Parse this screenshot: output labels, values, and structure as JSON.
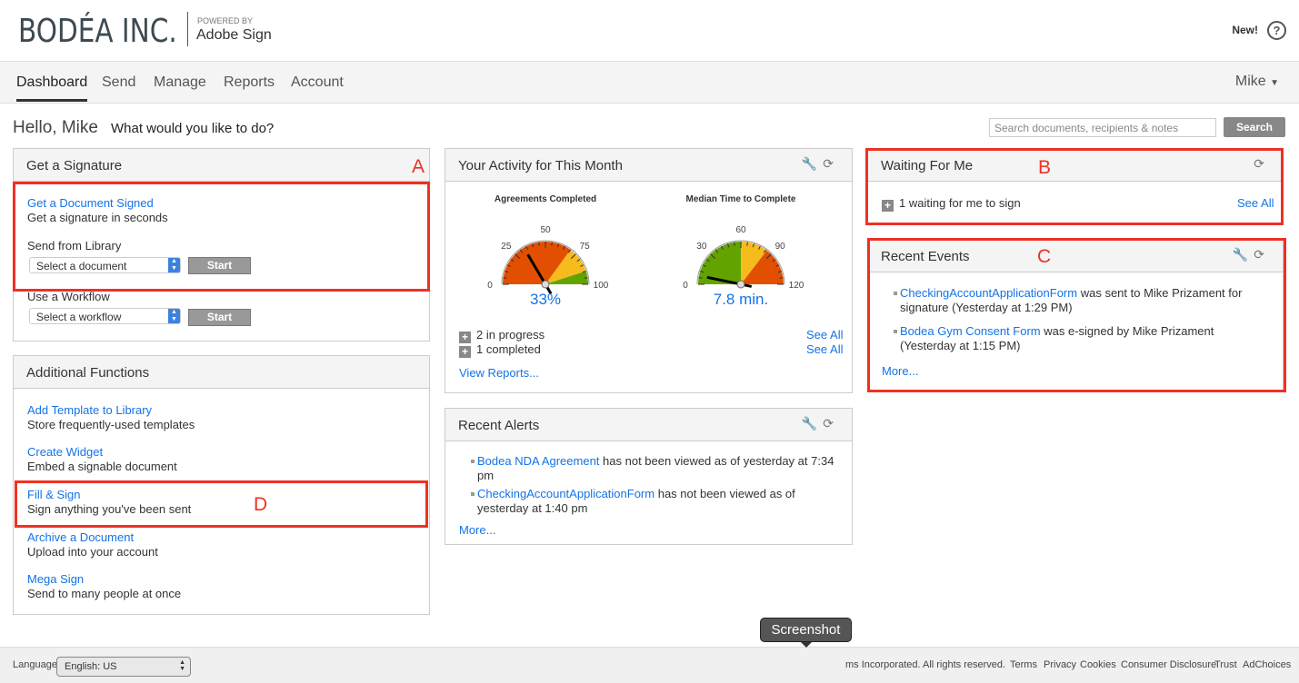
{
  "brand": {
    "logo": "BODÉA INC.",
    "powered_by": "POWERED BY",
    "product": "Adobe Sign"
  },
  "header": {
    "new_label": "New!",
    "help_icon": "question-circle-icon"
  },
  "nav": {
    "tabs": [
      "Dashboard",
      "Send",
      "Manage",
      "Reports",
      "Account"
    ],
    "active": "Dashboard",
    "user": "Mike"
  },
  "greeting": {
    "hello": "Hello, Mike",
    "prompt": "What would you like to do?"
  },
  "search": {
    "placeholder": "Search documents, recipients & notes",
    "button": "Search"
  },
  "get_signature": {
    "title": "Get a Signature",
    "link": "Get a Document Signed",
    "desc": "Get a signature in seconds",
    "library_label": "Send from Library",
    "library_select": "Select a document",
    "start": "Start",
    "workflow_label": "Use a Workflow",
    "workflow_select": "Select a workflow"
  },
  "additional": {
    "title": "Additional Functions",
    "items": [
      {
        "link": "Add Template to Library",
        "desc": "Store frequently-used templates"
      },
      {
        "link": "Create Widget",
        "desc": "Embed a signable document"
      },
      {
        "link": "Fill & Sign",
        "desc": "Sign anything you've been sent"
      },
      {
        "link": "Archive a Document",
        "desc": "Upload into your account"
      },
      {
        "link": "Mega Sign",
        "desc": "Send to many people at once"
      }
    ]
  },
  "activity": {
    "title": "Your Activity for This Month",
    "gauges": [
      {
        "title": "Agreements Completed",
        "value": 33,
        "display": "33%",
        "min": 0,
        "max": 100,
        "ticks": [
          "0",
          "25",
          "50",
          "75",
          "100"
        ],
        "bands": [
          {
            "to": 70,
            "color": "#e34f00"
          },
          {
            "to": 90,
            "color": "#f6bb1c"
          },
          {
            "to": 100,
            "color": "#63a300"
          }
        ]
      },
      {
        "title": "Median Time to Complete",
        "value": 7.8,
        "display": "7.8 min.",
        "min": 0,
        "max": 120,
        "ticks": [
          "0",
          "30",
          "60",
          "90",
          "120"
        ],
        "bands": [
          {
            "to": 60,
            "color": "#63a300"
          },
          {
            "to": 85,
            "color": "#f6bb1c"
          },
          {
            "to": 120,
            "color": "#e34f00"
          }
        ]
      }
    ],
    "in_progress": "2 in progress",
    "completed": "1 completed",
    "see_all": "See All",
    "view_reports": "View Reports..."
  },
  "alerts": {
    "title": "Recent Alerts",
    "items": [
      {
        "link": "Bodea NDA Agreement",
        "text": " has not been viewed as of yesterday at 7:34 pm"
      },
      {
        "link": "CheckingAccountApplicationForm",
        "text": " has not been viewed as of yesterday at 1:40 pm"
      }
    ],
    "more": "More..."
  },
  "waiting": {
    "title": "Waiting For Me",
    "item": "1 waiting for me to sign",
    "see_all": "See All"
  },
  "events": {
    "title": "Recent Events",
    "items": [
      {
        "link": "CheckingAccountApplicationForm",
        "text": "  was sent to Mike Prizament for signature (Yesterday at 1:29 PM)"
      },
      {
        "link": "Bodea Gym Consent Form",
        "text": "  was e-signed by Mike Prizament (Yesterday at 1:15 PM)"
      }
    ],
    "more": "More..."
  },
  "annotations": [
    "A",
    "B",
    "C",
    "D"
  ],
  "footer": {
    "language_label": "Language",
    "language": "English: US",
    "copyright": "ms Incorporated. All rights reserved.",
    "links": [
      "Terms",
      "Privacy",
      "Cookies",
      "Consumer Disclosure",
      "Trust",
      "AdChoices"
    ]
  },
  "tooltip": "Screenshot"
}
